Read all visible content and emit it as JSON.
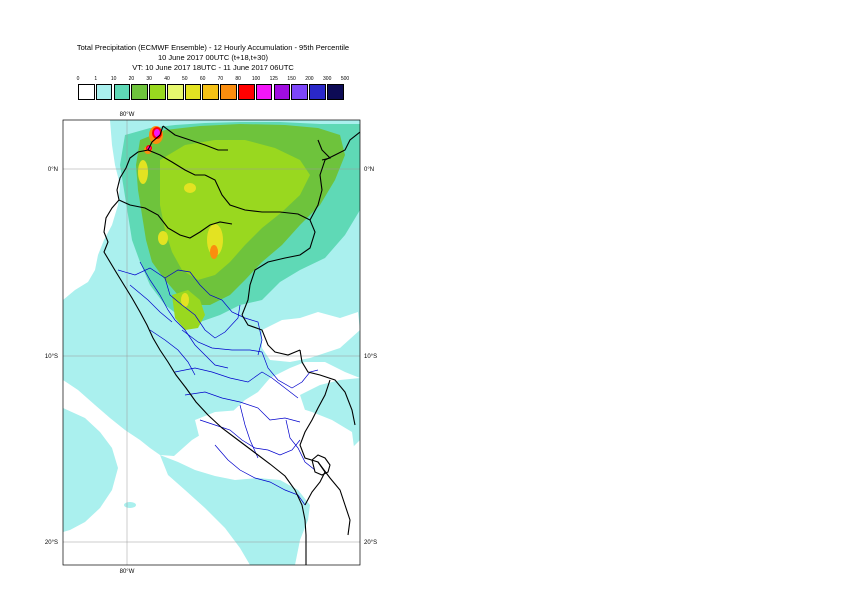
{
  "header": {
    "line1": "Total Precipitation (ECMWF Ensemble) - 12 Hourly Accumulation - 95th Percentile",
    "line2": "10 June 2017 00UTC (t+18,t+30)",
    "line3": "VT: 10 June 2017 18UTC - 11 June 2017 06UTC"
  },
  "legend": {
    "ticks": [
      "0",
      "1",
      "10",
      "20",
      "30",
      "40",
      "50",
      "60",
      "70",
      "80",
      "100",
      "125",
      "150",
      "200",
      "300",
      "500"
    ],
    "colors": [
      "#ffffff",
      "#aaf0ee",
      "#5fd9b6",
      "#6ec33c",
      "#99d81f",
      "#e6f76e",
      "#e3e322",
      "#f5c116",
      "#fa8d0e",
      "#ff0000",
      "#f316f8",
      "#a10de1",
      "#7d46fa",
      "#2a28c9",
      "#0d0b55"
    ]
  },
  "map": {
    "lon_labels": {
      "top": "80°W",
      "bottom": "80°W"
    },
    "lat_labels": [
      "0°N",
      "10°S",
      "20°S"
    ],
    "colors": {
      "ocean_light": "#aaf0ee",
      "mint": "#5fd9b6",
      "green": "#6ec33c",
      "lime": "#99d81f",
      "yellow": "#e3e322",
      "orange": "#fa8d0e",
      "red": "#ff0000",
      "magenta": "#f316f8",
      "coast": "#000000",
      "admin": "#0000cc"
    }
  }
}
